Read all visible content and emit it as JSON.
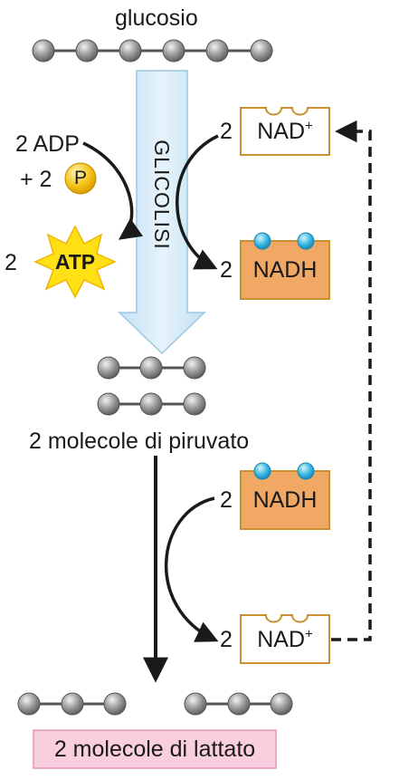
{
  "glucose": {
    "label": "glucosio"
  },
  "glycolysis": {
    "label": "GLICOLISI"
  },
  "adp": {
    "coef": "2",
    "label": "ADP",
    "plus": "+ 2",
    "phosphate": "P"
  },
  "atp": {
    "coef": "2",
    "label": "ATP"
  },
  "nad_top": {
    "coef": "2",
    "label": "NAD",
    "superscript": "+"
  },
  "nadh_top": {
    "coef": "2",
    "label": "NADH"
  },
  "pyruvate": {
    "label": "2 molecole di piruvato"
  },
  "nadh_bottom": {
    "coef": "2",
    "label": "NADH"
  },
  "nad_bottom": {
    "coef": "2",
    "label": "NAD",
    "superscript": "+"
  },
  "lactate": {
    "label": "2 molecole di lattato"
  },
  "colors": {
    "arrow_fill": "#d8ecf8",
    "arrow_stroke": "#9cc7e0",
    "nadh_fill": "#f2a865",
    "nad_border": "#c8902e",
    "electron": "#37b6e2",
    "phosphate": "#f5c518",
    "atp_star": "#ffe014",
    "lactate_box": "#f9cfe0",
    "bead": "#9a9a9a"
  }
}
